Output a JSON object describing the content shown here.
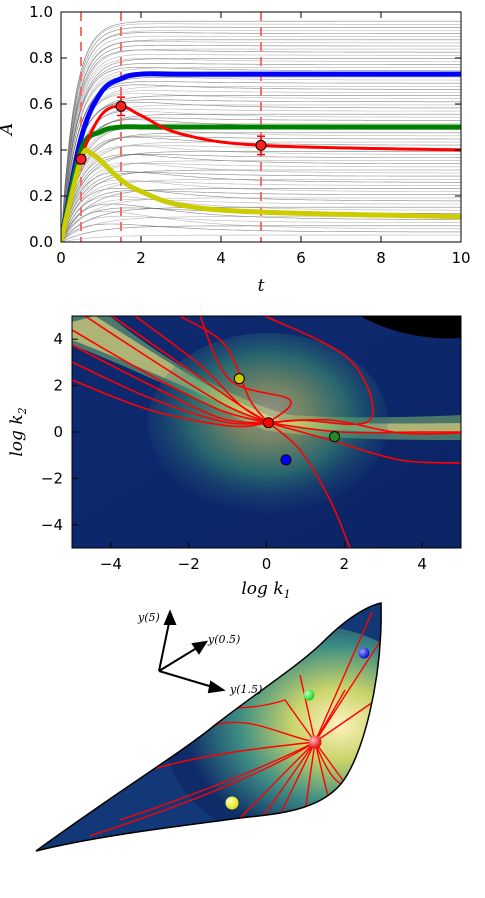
{
  "chart_data": [
    {
      "type": "line",
      "xlabel": "t",
      "ylabel": "A",
      "xlim": [
        0,
        10
      ],
      "ylim": [
        0.0,
        1.0
      ],
      "xticks": [
        "0",
        "2",
        "4",
        "6",
        "8",
        "10"
      ],
      "yticks": [
        "0.0",
        "0.2",
        "0.4",
        "0.6",
        "0.8",
        "1.0"
      ],
      "background_curves": "gray family of saturating trajectories",
      "vlines": [
        0.5,
        1.5,
        5.0
      ],
      "series": [
        {
          "color": "#0000ff",
          "x": [
            0,
            0.5,
            1,
            1.5,
            2,
            3,
            5,
            10
          ],
          "y": [
            0,
            0.45,
            0.65,
            0.71,
            0.73,
            0.73,
            0.73,
            0.73
          ]
        },
        {
          "color": "#008000",
          "x": [
            0,
            0.5,
            1,
            1.5,
            2,
            3,
            5,
            10
          ],
          "y": [
            0,
            0.4,
            0.48,
            0.5,
            0.5,
            0.5,
            0.5,
            0.5
          ]
        },
        {
          "color": "#ff0000",
          "x": [
            0,
            0.5,
            1,
            1.5,
            2,
            3,
            5,
            10
          ],
          "y": [
            0,
            0.36,
            0.55,
            0.59,
            0.55,
            0.47,
            0.42,
            0.4
          ]
        },
        {
          "color": "#cccc00",
          "x": [
            0,
            0.5,
            0.8,
            1.5,
            2,
            3,
            5,
            10
          ],
          "y": [
            0,
            0.36,
            0.38,
            0.27,
            0.22,
            0.16,
            0.13,
            0.11
          ]
        }
      ],
      "error_points": [
        {
          "x": 0.5,
          "y": 0.36,
          "err": 0.02
        },
        {
          "x": 1.5,
          "y": 0.59,
          "err": 0.04
        },
        {
          "x": 5.0,
          "y": 0.42,
          "err": 0.04
        }
      ]
    },
    {
      "type": "heatmap",
      "xlabel": "log k1",
      "ylabel": "log k2",
      "xlim": [
        -5,
        5
      ],
      "ylim": [
        -5,
        5
      ],
      "xticks": [
        "−4",
        "−2",
        "0",
        "2",
        "4"
      ],
      "yticks": [
        "−4",
        "−2",
        "0",
        "2",
        "4"
      ],
      "points": [
        {
          "name": "yellow",
          "x": -0.7,
          "y": 2.3,
          "color": "#cccc00"
        },
        {
          "name": "red",
          "x": 0.05,
          "y": 0.4,
          "color": "#ff0000"
        },
        {
          "name": "green",
          "x": 1.75,
          "y": -0.2,
          "color": "#228b22"
        },
        {
          "name": "blue",
          "x": 0.5,
          "y": -1.2,
          "color": "#0000ff"
        }
      ]
    },
    {
      "type": "other",
      "axis_labels": [
        "y(5)",
        "y(0.5)",
        "y(1.5)"
      ],
      "points": [
        {
          "name": "blue",
          "color": "#0000ff"
        },
        {
          "name": "green",
          "color": "#00ee00"
        },
        {
          "name": "red",
          "color": "#ff0000"
        },
        {
          "name": "yellow",
          "color": "#ffff00"
        }
      ]
    }
  ]
}
